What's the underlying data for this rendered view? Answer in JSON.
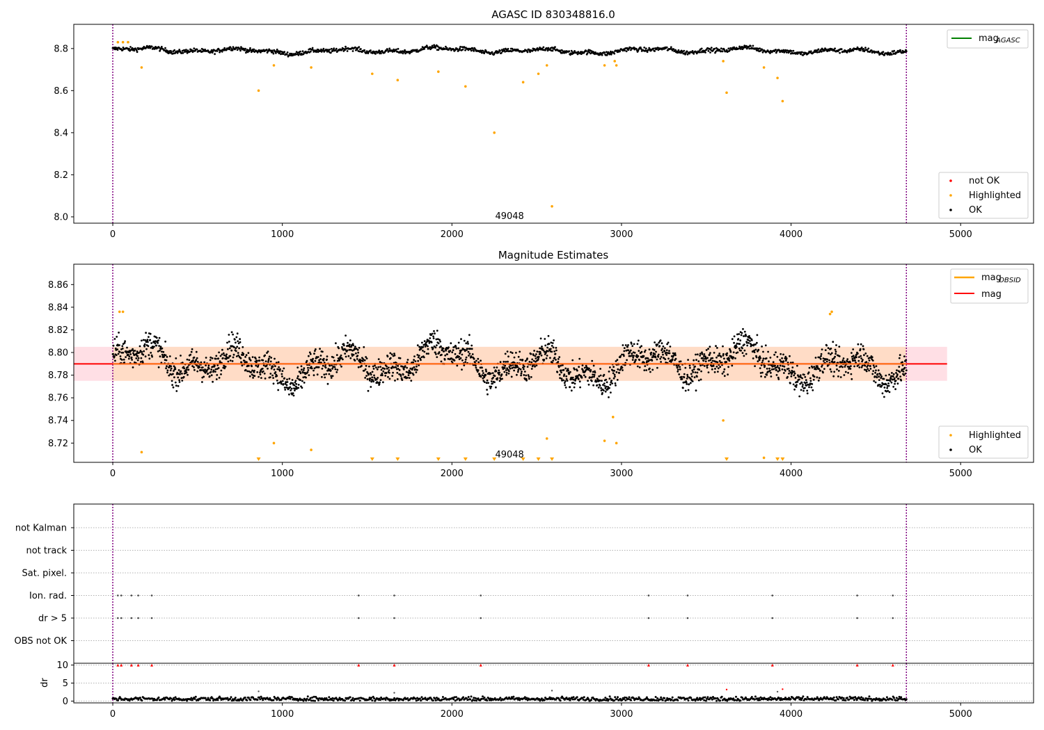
{
  "figure": {
    "colors": {
      "ok": "#000000",
      "highlighted": "#ffa500",
      "not_ok": "#ff0000",
      "agasc_line": "#008000",
      "obsid_line": "#ffa500",
      "mag_line": "#ff0000",
      "obsid_band": "#ffdab9",
      "mag_band": "#ffc0cb",
      "obs_boundary": "#800080"
    }
  },
  "chart_data": [
    {
      "type": "scatter",
      "title": "AGASC ID 830348816.0",
      "xlim": [
        -230,
        5430
      ],
      "ylim": [
        7.97,
        8.915
      ],
      "xticks": [
        "0",
        "1000",
        "2000",
        "3000",
        "4000",
        "5000"
      ],
      "yticks": [
        "8.0",
        "8.2",
        "8.4",
        "8.6",
        "8.8"
      ],
      "obs_boundaries": [
        0,
        4680
      ],
      "annotation": {
        "text": "49048",
        "x": 2340,
        "y": 8.0
      },
      "legend_lines": [
        {
          "label": "mag",
          "subscript": "AGASC",
          "color": "#008000"
        }
      ],
      "legend_points": [
        "not OK",
        "Highlighted",
        "OK"
      ],
      "ok_series": {
        "name": "OK",
        "x_start": 0,
        "x_end": 4680,
        "mean": 8.79,
        "pattern": "quasi-periodic variation of about ±0.02 mag"
      },
      "highlighted_points": {
        "name": "Highlighted",
        "x": [
          30,
          60,
          90,
          170,
          860,
          950,
          1170,
          1530,
          1680,
          1920,
          2080,
          2250,
          2420,
          2510,
          2560,
          2590,
          2900,
          2960,
          2970,
          3600,
          3620,
          3840,
          3920,
          3950
        ],
        "y": [
          8.83,
          8.83,
          8.83,
          8.71,
          8.6,
          8.72,
          8.71,
          8.68,
          8.65,
          8.69,
          8.62,
          8.4,
          8.64,
          8.68,
          8.72,
          8.05,
          8.72,
          8.74,
          8.72,
          8.74,
          8.59,
          8.71,
          8.66,
          8.55
        ]
      },
      "not_ok_points": {
        "name": "not OK",
        "x": [],
        "y": []
      }
    },
    {
      "type": "scatter",
      "title": "Magnitude Estimates",
      "xlim": [
        -230,
        5430
      ],
      "ylim": [
        8.703,
        8.878
      ],
      "xticks": [
        "0",
        "1000",
        "2000",
        "3000",
        "4000",
        "5000"
      ],
      "yticks": [
        "8.72",
        "8.74",
        "8.76",
        "8.78",
        "8.80",
        "8.82",
        "8.84",
        "8.86"
      ],
      "obs_boundaries": [
        0,
        4680
      ],
      "annotation": {
        "text": "49048",
        "x": 2340,
        "y": 8.709
      },
      "legend_lines": [
        {
          "label": "mag",
          "subscript": "OBSID",
          "color": "#ffa500"
        },
        {
          "label": "mag",
          "subscript": "",
          "color": "#ff0000"
        }
      ],
      "legend_points": [
        "Highlighted",
        "OK"
      ],
      "mag_line": {
        "value": 8.79,
        "x_start": -230,
        "x_end": 4920
      },
      "band": {
        "low": 8.775,
        "high": 8.805,
        "x_start": -230,
        "x_end": 4920
      },
      "obsid_band": {
        "low": 8.775,
        "high": 8.805,
        "x_start": 0,
        "x_end": 4680
      },
      "ok_series": {
        "name": "OK",
        "x_start": 0,
        "x_end": 4680,
        "mean": 8.79,
        "pattern": "quasi-periodic variation of about ±0.025 mag"
      },
      "highlighted_points": {
        "name": "Highlighted",
        "x": [
          40,
          60,
          170,
          950,
          1170,
          2560,
          2900,
          2950,
          2970,
          3600,
          3840,
          4230,
          4240
        ],
        "y": [
          8.836,
          8.836,
          8.712,
          8.72,
          8.714,
          8.724,
          8.722,
          8.743,
          8.72,
          8.74,
          8.707,
          8.834,
          8.836
        ]
      },
      "lower_limit_markers": {
        "x": [
          860,
          1530,
          1680,
          1920,
          2080,
          2250,
          2420,
          2510,
          2590,
          3620,
          3920,
          3950
        ]
      }
    },
    {
      "type": "scatter",
      "xlim": [
        -230,
        5430
      ],
      "xticks": [],
      "obs_boundaries": [
        0,
        4680
      ],
      "flag_rows": [
        "not Kalman",
        "not track",
        "Sat. pixel.",
        "Ion. rad.",
        "dr > 5",
        "OBS not OK"
      ],
      "flag_marks": {
        "Ion. rad.": [
          30,
          50,
          110,
          150,
          230,
          1450,
          1660,
          2170,
          3160,
          3390,
          3890,
          4390,
          4600
        ],
        "dr > 5": [
          30,
          50,
          110,
          150,
          230,
          1450,
          1660,
          2170,
          3160,
          3390,
          3890,
          4390,
          4600
        ]
      }
    },
    {
      "type": "scatter",
      "ylabel": "dr",
      "xlim": [
        -230,
        5430
      ],
      "ylim": [
        -0.5,
        10.5
      ],
      "xticks": [
        "0",
        "1000",
        "2000",
        "3000",
        "4000",
        "5000"
      ],
      "yticks": [
        "0",
        "5",
        "10"
      ],
      "obs_boundaries": [
        0,
        4680
      ],
      "clipped_markers": {
        "x": [
          30,
          50,
          110,
          150,
          230,
          1450,
          1660,
          2170,
          3160,
          3390,
          3890,
          4390,
          4600
        ],
        "y": 10
      },
      "extra_points": {
        "x": [
          860,
          1660,
          2590,
          3620,
          3920,
          3950
        ],
        "y": [
          2.7,
          2.3,
          2.9,
          3.2,
          2.6,
          3.3
        ]
      },
      "ok_series": {
        "name": "OK",
        "x_start": 0,
        "x_end": 4680,
        "mean": 0.6,
        "pattern": "noise between 0 and 1.3"
      }
    }
  ]
}
